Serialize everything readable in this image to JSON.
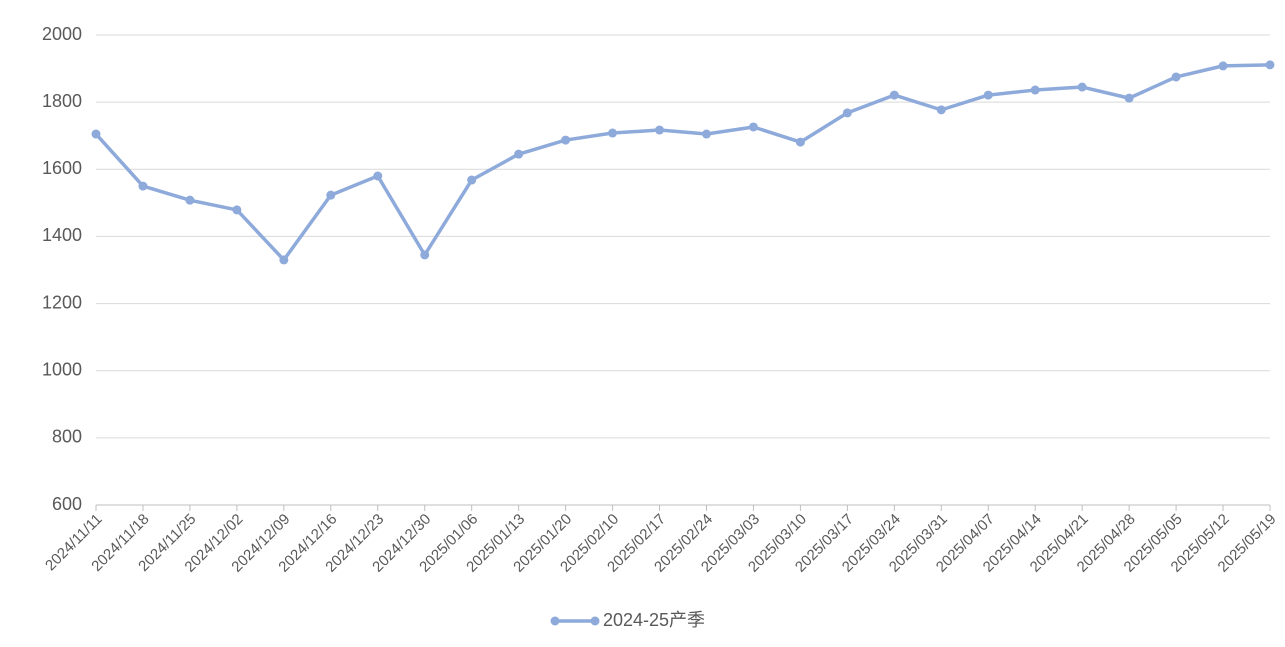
{
  "chart_data": {
    "type": "line",
    "categories": [
      "2024/11/11",
      "2024/11/18",
      "2024/11/25",
      "2024/12/02",
      "2024/12/09",
      "2024/12/16",
      "2024/12/23",
      "2024/12/30",
      "2025/01/06",
      "2025/01/13",
      "2025/01/20",
      "2025/02/10",
      "2025/02/17",
      "2025/02/24",
      "2025/03/03",
      "2025/03/10",
      "2025/03/17",
      "2025/03/24",
      "2025/03/31",
      "2025/04/07",
      "2025/04/14",
      "2025/04/21",
      "2025/04/28",
      "2025/05/05",
      "2025/05/12",
      "2025/05/19"
    ],
    "series": [
      {
        "name": "2024-25产季",
        "color": "#8eaadb",
        "values": [
          1705,
          1550,
          1508,
          1479,
          1330,
          1523,
          1580,
          1345,
          1568,
          1645,
          1687,
          1708,
          1717,
          1705,
          1726,
          1681,
          1768,
          1821,
          1777,
          1821,
          1836,
          1845,
          1812,
          1875,
          1908,
          1911
        ]
      }
    ],
    "ylim": [
      600,
      2000
    ],
    "yticks": [
      600,
      800,
      1000,
      1200,
      1400,
      1600,
      1800,
      2000
    ],
    "grid": true,
    "legend": "bottom"
  }
}
